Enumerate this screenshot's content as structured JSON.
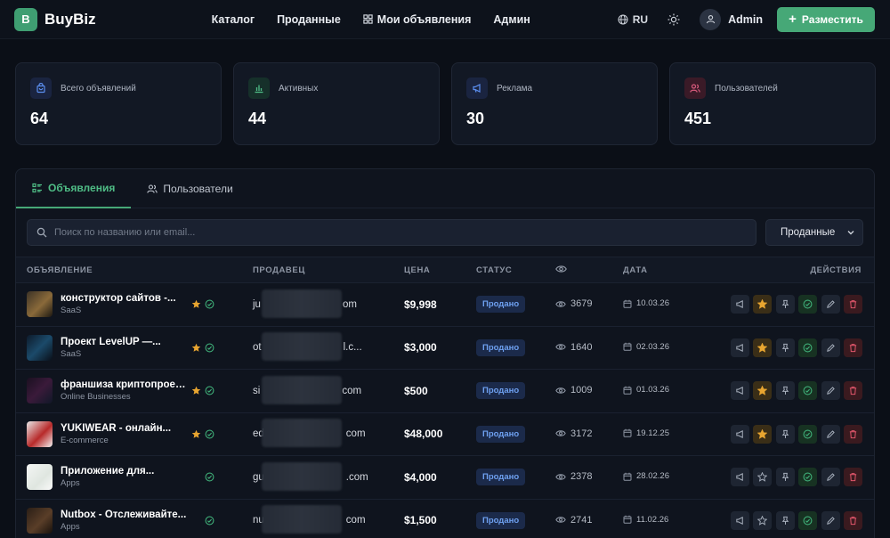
{
  "app": {
    "logo_letter": "B",
    "name": "BuyBiz"
  },
  "nav": {
    "catalog": "Каталог",
    "sold": "Проданные",
    "my_listings": "Мои объявления",
    "admin": "Админ"
  },
  "header": {
    "lang": "RU",
    "user_name": "Admin",
    "place_label": "Разместить"
  },
  "stats": [
    {
      "label": "Всего объявлений",
      "value": "64",
      "color": "#4a7bd8"
    },
    {
      "label": "Активных",
      "value": "44",
      "color": "#3f9e72"
    },
    {
      "label": "Реклама",
      "value": "30",
      "color": "#4a7bd8"
    },
    {
      "label": "Пользователей",
      "value": "451",
      "color": "#c24a6a"
    }
  ],
  "tabs": {
    "listings": "Объявления",
    "users": "Пользователи"
  },
  "search": {
    "placeholder": "Поиск по названию или email..."
  },
  "filter": {
    "selected": "Проданные"
  },
  "table": {
    "headers": {
      "listing": "ОБЪЯВЛЕНИЕ",
      "seller": "ПРОДАВЕЦ",
      "price": "ЦЕНА",
      "status": "СТАТУС",
      "date": "ДАТА",
      "actions": "ДЕЙСТВИЯ"
    },
    "rows": [
      {
        "title": "конструктор сайтов -...",
        "category": "SaaS",
        "seller_start": "ju",
        "seller_end": "om",
        "price": "$9,998",
        "status": "Продано",
        "views": "3679",
        "date": "10.03.26",
        "starred": true,
        "verified": true
      },
      {
        "title": "Проект LevelUP —...",
        "category": "SaaS",
        "seller_start": "ot",
        "seller_end": "l.c...",
        "price": "$3,000",
        "status": "Продано",
        "views": "1640",
        "date": "02.03.26",
        "starred": true,
        "verified": true
      },
      {
        "title": "франшиза криптопроекта",
        "category": "Online Businesses",
        "seller_start": "si",
        "seller_end": "com",
        "price": "$500",
        "status": "Продано",
        "views": "1009",
        "date": "01.03.26",
        "starred": true,
        "verified": true
      },
      {
        "title": "YŪKIWEAR - онлайн...",
        "category": "E-commerce",
        "seller_start": "ed",
        "seller_end": "com",
        "price": "$48,000",
        "status": "Продано",
        "views": "3172",
        "date": "19.12.25",
        "starred": true,
        "verified": true
      },
      {
        "title": "Приложение для...",
        "category": "Apps",
        "seller_start": "gu",
        "seller_end": ".com",
        "price": "$4,000",
        "status": "Продано",
        "views": "2378",
        "date": "28.02.26",
        "starred": false,
        "verified": true
      },
      {
        "title": "Nutbox - Отслеживайте...",
        "category": "Apps",
        "seller_start": "nu",
        "seller_end": "com",
        "price": "$1,500",
        "status": "Продано",
        "views": "2741",
        "date": "11.02.26",
        "starred": false,
        "verified": true
      }
    ]
  }
}
